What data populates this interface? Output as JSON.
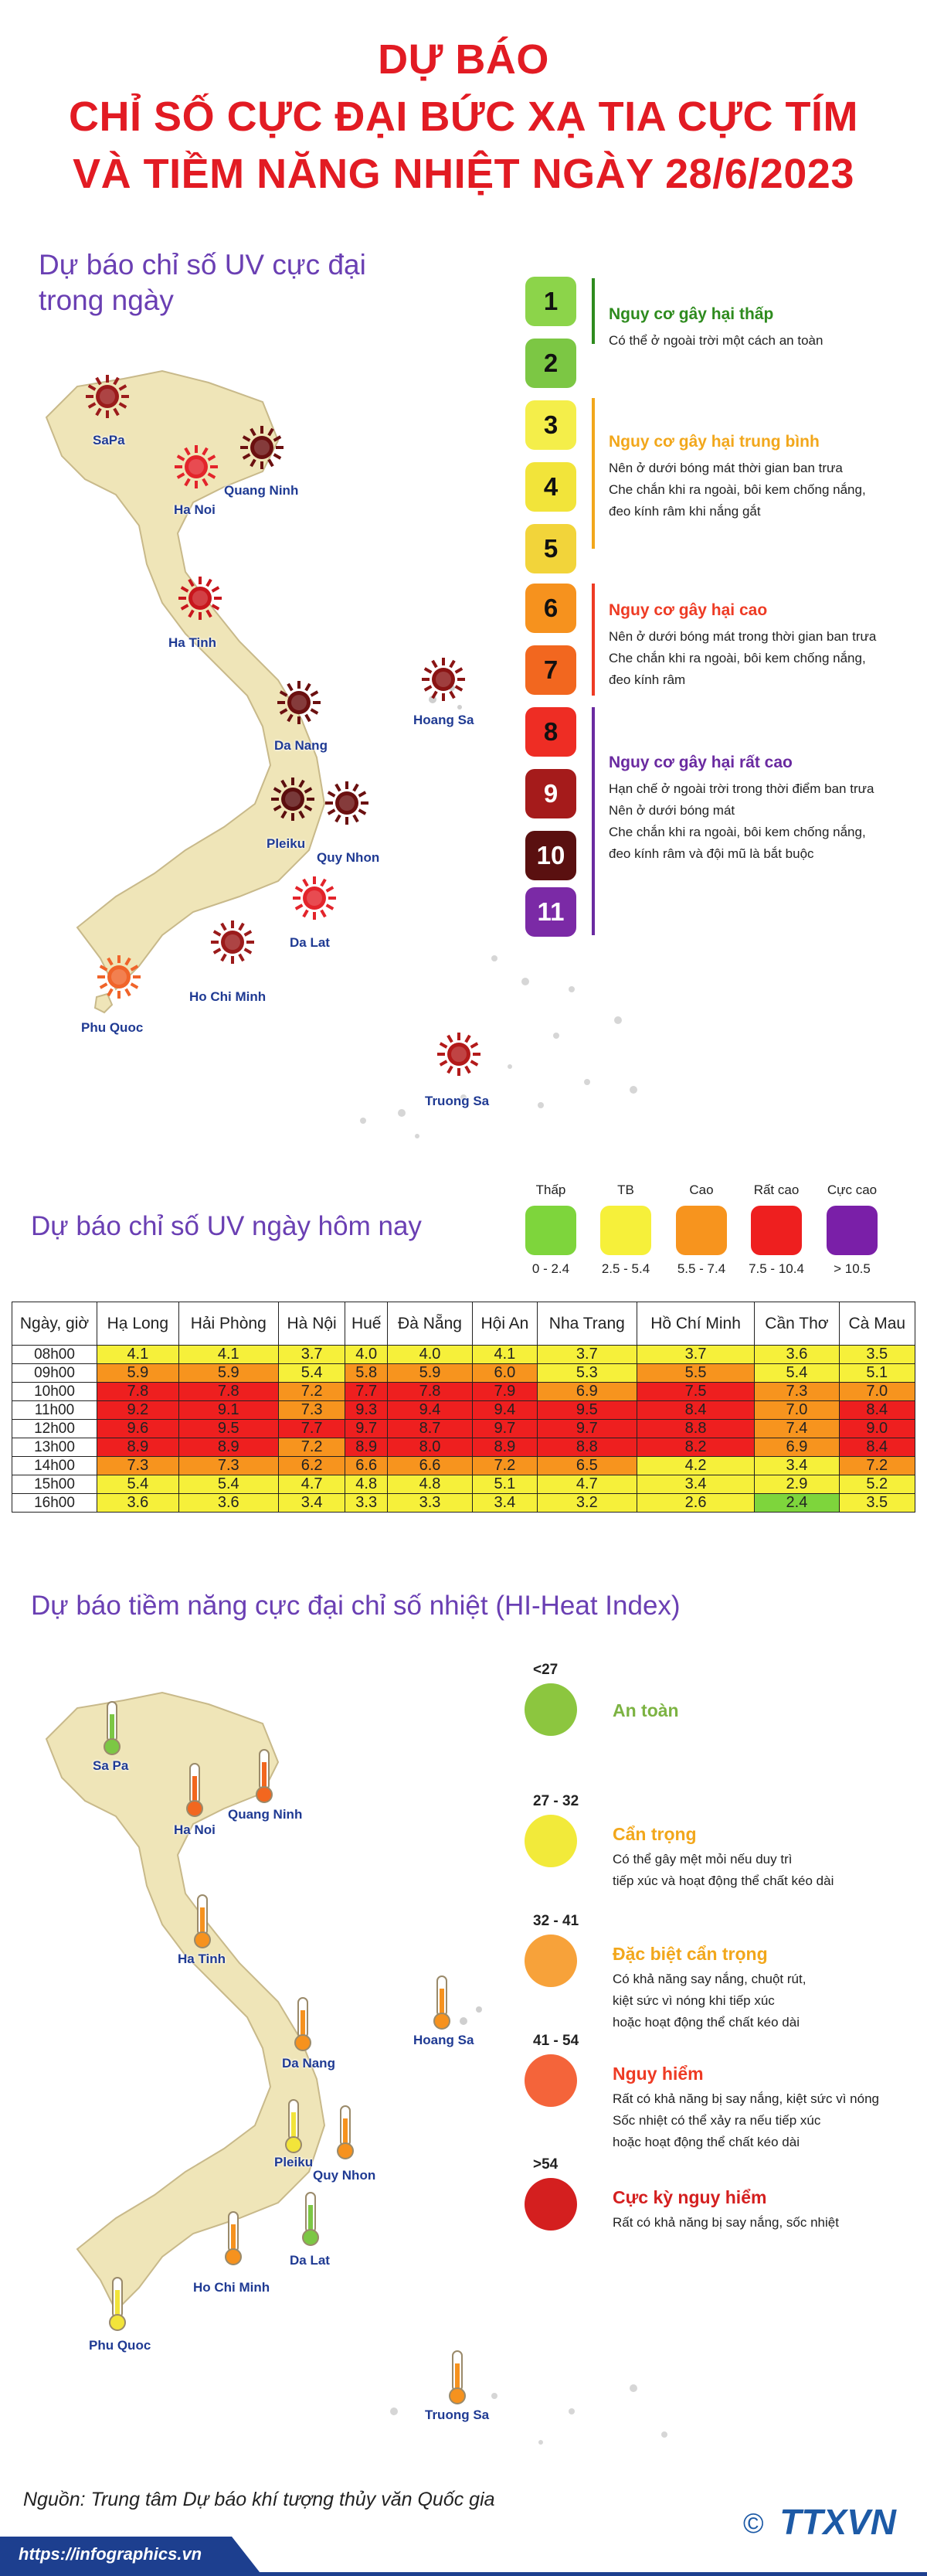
{
  "title": {
    "line1": "DỰ BÁO",
    "line2": "CHỈ SỐ CỰC ĐẠI BỨC XẠ TIA CỰC TÍM",
    "line3": "VÀ TIỀM NĂNG NHIỆT NGÀY 28/6/2023"
  },
  "uv_map": {
    "heading_line1": "Dự báo chỉ số UV cực đại",
    "heading_line2": "trong ngày",
    "cities": [
      {
        "name": "SaPa",
        "color": "#9b1b1b"
      },
      {
        "name": "Ha Noi",
        "color": "#e3242b"
      },
      {
        "name": "Quang Ninh",
        "color": "#6b1010"
      },
      {
        "name": "Ha Tinh",
        "color": "#c8161d"
      },
      {
        "name": "Hoang Sa",
        "color": "#8a1414"
      },
      {
        "name": "Da Nang",
        "color": "#6b1010"
      },
      {
        "name": "Pleiku",
        "color": "#5b0e0e"
      },
      {
        "name": "Quy Nhon",
        "color": "#6b1010"
      },
      {
        "name": "Da Lat",
        "color": "#e3242b"
      },
      {
        "name": "Ho Chi Minh",
        "color": "#9b1b1b"
      },
      {
        "name": "Phu Quoc",
        "color": "#f0642a"
      },
      {
        "name": "Truong Sa",
        "color": "#b31a1a"
      }
    ]
  },
  "uv_scale": {
    "levels": [
      {
        "n": "1",
        "color": "#8cd44a"
      },
      {
        "n": "2",
        "color": "#7cc744"
      },
      {
        "n": "3",
        "color": "#f4ee4a"
      },
      {
        "n": "4",
        "color": "#f2e43a"
      },
      {
        "n": "5",
        "color": "#f2d43a"
      },
      {
        "n": "6",
        "color": "#f6921e"
      },
      {
        "n": "7",
        "color": "#f2671f"
      },
      {
        "n": "8",
        "color": "#ee2d24"
      },
      {
        "n": "9",
        "color": "#a51b1b"
      },
      {
        "n": "10",
        "color": "#5a1010"
      },
      {
        "n": "11",
        "color": "#7b2aa6"
      }
    ],
    "risks": [
      {
        "title": "Nguy cơ gây hại thấp",
        "color": "#2e8b1e",
        "desc": [
          "Có thể ở ngoài trời một cách an toàn"
        ]
      },
      {
        "title": "Nguy cơ gây hại trung bình",
        "color": "#f2a71b",
        "desc": [
          "Nên ở dưới bóng mát thời gian ban trưa",
          "Che chắn khi ra ngoài, bôi kem chống nắng,",
          "đeo kính râm khi nắng gắt"
        ]
      },
      {
        "title": "Nguy cơ gây hại cao",
        "color": "#ee3b24",
        "desc": [
          "Nên ở dưới bóng mát trong thời gian ban trưa",
          "Che chắn khi ra ngoài, bôi kem chống nắng,",
          "đeo kính râm"
        ]
      },
      {
        "title": "Nguy cơ gây hại rất cao",
        "color": "#6a2aa0",
        "desc": [
          "Hạn chế ở ngoài trời trong thời điểm ban trưa",
          "Nên ở dưới bóng mát",
          "Che chắn khi ra ngoài, bôi kem chống nắng,",
          "đeo kính râm và đội mũ là bắt buộc"
        ]
      }
    ]
  },
  "uv_today": {
    "heading": "Dự báo chỉ số UV ngày hôm nay",
    "legend": [
      {
        "label": "Thấp",
        "range": "0 - 2.4",
        "color": "#7ed53c"
      },
      {
        "label": "TB",
        "range": "2.5 - 5.4",
        "color": "#f6f03a"
      },
      {
        "label": "Cao",
        "range": "5.5 - 7.4",
        "color": "#f7941e"
      },
      {
        "label": "Rất cao",
        "range": "7.5 - 10.4",
        "color": "#ee1f1f"
      },
      {
        "label": "Cực cao",
        "range": "> 10.5",
        "color": "#7a1fa8"
      }
    ]
  },
  "table": {
    "corner": "Ngày, giờ",
    "columns": [
      "Hạ Long",
      "Hải Phòng",
      "Hà Nội",
      "Huế",
      "Đà Nẵng",
      "Hội An",
      "Nha Trang",
      "Hồ Chí Minh",
      "Cần Thơ",
      "Cà Mau"
    ],
    "rows": [
      {
        "time": "08h00",
        "values": [
          "4.1",
          "4.1",
          "3.7",
          "4.0",
          "4.0",
          "4.1",
          "3.7",
          "3.7",
          "3.6",
          "3.5"
        ]
      },
      {
        "time": "09h00",
        "values": [
          "5.9",
          "5.9",
          "5.4",
          "5.8",
          "5.9",
          "6.0",
          "5.3",
          "5.5",
          "5.4",
          "5.1"
        ]
      },
      {
        "time": "10h00",
        "values": [
          "7.8",
          "7.8",
          "7.2",
          "7.7",
          "7.8",
          "7.9",
          "6.9",
          "7.5",
          "7.3",
          "7.0"
        ]
      },
      {
        "time": "11h00",
        "values": [
          "9.2",
          "9.1",
          "7.3",
          "9.3",
          "9.4",
          "9.4",
          "9.5",
          "8.4",
          "7.0",
          "8.4"
        ]
      },
      {
        "time": "12h00",
        "values": [
          "9.6",
          "9.5",
          "7.7",
          "9.7",
          "8.7",
          "9.7",
          "9.7",
          "8.8",
          "7.4",
          "9.0"
        ]
      },
      {
        "time": "13h00",
        "values": [
          "8.9",
          "8.9",
          "7.2",
          "8.9",
          "8.0",
          "8.9",
          "8.8",
          "8.2",
          "6.9",
          "8.4"
        ]
      },
      {
        "time": "14h00",
        "values": [
          "7.3",
          "7.3",
          "6.2",
          "6.6",
          "6.6",
          "7.2",
          "6.5",
          "4.2",
          "3.4",
          "7.2"
        ]
      },
      {
        "time": "15h00",
        "values": [
          "5.4",
          "5.4",
          "4.7",
          "4.8",
          "4.8",
          "5.1",
          "4.7",
          "3.4",
          "2.9",
          "5.2"
        ]
      },
      {
        "time": "16h00",
        "values": [
          "3.6",
          "3.6",
          "3.4",
          "3.3",
          "3.3",
          "3.4",
          "3.2",
          "2.6",
          "2.4",
          "3.5"
        ]
      }
    ]
  },
  "heat_map": {
    "heading": "Dự báo tiềm năng cực đại chỉ số nhiệt (HI-Heat Index)",
    "cities": [
      {
        "name": "Sa Pa",
        "color": "#7cc744"
      },
      {
        "name": "Ha Noi",
        "color": "#f2671f"
      },
      {
        "name": "Quang Ninh",
        "color": "#f2671f"
      },
      {
        "name": "Ha Tinh",
        "color": "#f6921e"
      },
      {
        "name": "Hoang Sa",
        "color": "#f6921e"
      },
      {
        "name": "Da Nang",
        "color": "#f6921e"
      },
      {
        "name": "Pleiku",
        "color": "#f2e43a"
      },
      {
        "name": "Quy Nhon",
        "color": "#f6921e"
      },
      {
        "name": "Da Lat",
        "color": "#7cc744"
      },
      {
        "name": "Ho Chi Minh",
        "color": "#f6921e"
      },
      {
        "name": "Phu Quoc",
        "color": "#f2e43a"
      },
      {
        "name": "Truong Sa",
        "color": "#f6921e"
      }
    ],
    "levels": [
      {
        "range": "<27",
        "title": "An toàn",
        "circle": "#8cc63f",
        "tcolor": "#7cb342",
        "desc": []
      },
      {
        "range": "27 - 32",
        "title": "Cẩn trọng",
        "circle": "#f2ea3a",
        "tcolor": "#f2a71b",
        "desc": [
          "Có thể gây mệt mỏi nếu duy trì",
          "tiếp xúc và hoạt động thể chất kéo dài"
        ]
      },
      {
        "range": "32 - 41",
        "title": "Đặc biệt cẩn trọng",
        "circle": "#f7a23a",
        "tcolor": "#f2a71b",
        "desc": [
          "Có khả năng say nắng, chuột rút,",
          "kiệt sức vì nóng khi tiếp xúc",
          "hoặc hoạt động thể chất kéo dài"
        ]
      },
      {
        "range": "41 - 54",
        "title": "Nguy hiểm",
        "circle": "#f4643a",
        "tcolor": "#ee3b24",
        "desc": [
          "Rất có khả năng bị say nắng, kiệt sức vì nóng",
          "Sốc nhiệt có thể xảy ra nếu tiếp xúc",
          "hoặc hoạt động thể chất kéo dài"
        ]
      },
      {
        "range": ">54",
        "title": "Cực kỳ nguy hiểm",
        "circle": "#d41f1f",
        "tcolor": "#d41f1f",
        "desc": [
          "Rất có khả năng bị say nắng, sốc nhiệt"
        ]
      }
    ]
  },
  "footer": {
    "source": "Nguồn: Trung tâm Dự báo khí tượng thủy văn Quốc gia",
    "url": "https://infographics.vn",
    "copyright": "©",
    "logo": "TTXVN"
  },
  "colors": {
    "title_red": "#e21b23",
    "heading_purple": "#6a3fb3",
    "map_fill": "#efe5b8",
    "map_stroke": "#c8b98a",
    "table_green": "#7ed53c",
    "table_yellow": "#f6f03a",
    "table_orange": "#f7941e",
    "table_red": "#ee1f1f"
  }
}
